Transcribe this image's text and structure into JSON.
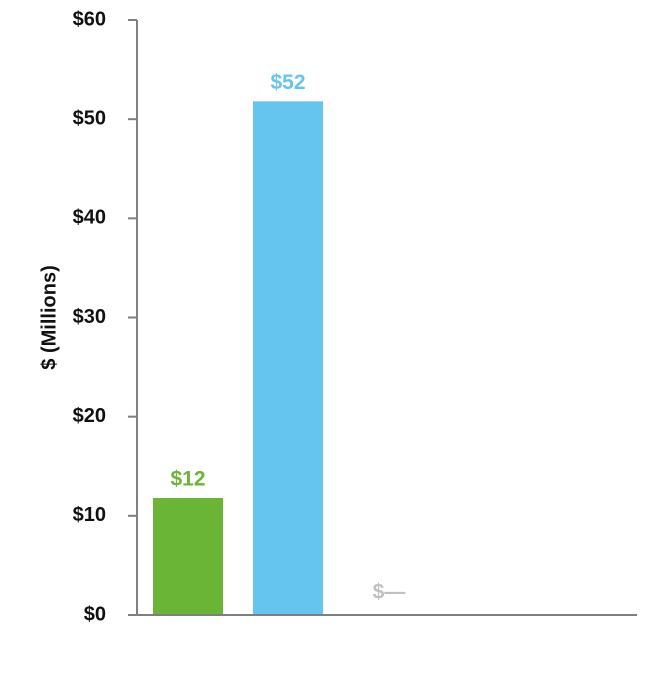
{
  "chart_data": {
    "type": "bar",
    "title": "",
    "xlabel": "",
    "ylabel": "$ (Millions)",
    "ylim": [
      0,
      60
    ],
    "yticks": [
      {
        "value": 0,
        "label": "$0"
      },
      {
        "value": 10,
        "label": "$10"
      },
      {
        "value": 20,
        "label": "$20"
      },
      {
        "value": 30,
        "label": "$30"
      },
      {
        "value": 40,
        "label": "$40"
      },
      {
        "value": 50,
        "label": "$50"
      },
      {
        "value": 60,
        "label": "$60"
      }
    ],
    "grid": false,
    "legend": "none",
    "bars": [
      {
        "value": 11.8,
        "label": "$12",
        "color": "#6ab535"
      },
      {
        "value": 51.8,
        "label": "$52",
        "color": "#66c5ef"
      },
      {
        "value": 0,
        "label": "$—",
        "color": "#c0c0c0"
      }
    ],
    "axis_color": "#7f7f7f"
  }
}
